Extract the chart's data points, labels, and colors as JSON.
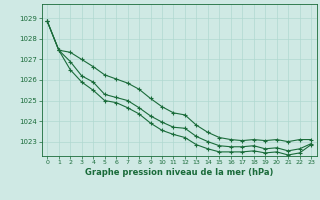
{
  "title": "Graphe pression niveau de la mer (hPa)",
  "bg_color": "#cfe9e4",
  "grid_color": "#b0d8d0",
  "line_color": "#1a6b3a",
  "xlim": [
    -0.5,
    23.5
  ],
  "ylim": [
    1022.3,
    1029.7
  ],
  "yticks": [
    1023,
    1024,
    1025,
    1026,
    1027,
    1028,
    1029
  ],
  "xticks": [
    0,
    1,
    2,
    3,
    4,
    5,
    6,
    7,
    8,
    9,
    10,
    11,
    12,
    13,
    14,
    15,
    16,
    17,
    18,
    19,
    20,
    21,
    22,
    23
  ],
  "line_main": [
    1028.85,
    1027.45,
    1026.9,
    1026.2,
    1025.9,
    1025.3,
    1025.15,
    1025.0,
    1024.65,
    1024.25,
    1023.95,
    1023.7,
    1023.65,
    1023.25,
    1023.0,
    1022.8,
    1022.75,
    1022.75,
    1022.8,
    1022.65,
    1022.7,
    1022.55,
    1022.65,
    1022.9
  ],
  "line_upper": [
    1028.85,
    1027.45,
    1027.35,
    1027.0,
    1026.65,
    1026.25,
    1026.05,
    1025.85,
    1025.55,
    1025.1,
    1024.7,
    1024.4,
    1024.3,
    1023.8,
    1023.45,
    1023.2,
    1023.1,
    1023.05,
    1023.1,
    1023.05,
    1023.1,
    1023.0,
    1023.1,
    1023.1
  ],
  "line_lower": [
    1028.85,
    1027.45,
    1026.5,
    1025.9,
    1025.5,
    1025.0,
    1024.9,
    1024.65,
    1024.35,
    1023.9,
    1023.55,
    1023.35,
    1023.2,
    1022.85,
    1022.65,
    1022.5,
    1022.5,
    1022.5,
    1022.55,
    1022.45,
    1022.5,
    1022.35,
    1022.45,
    1022.85
  ]
}
